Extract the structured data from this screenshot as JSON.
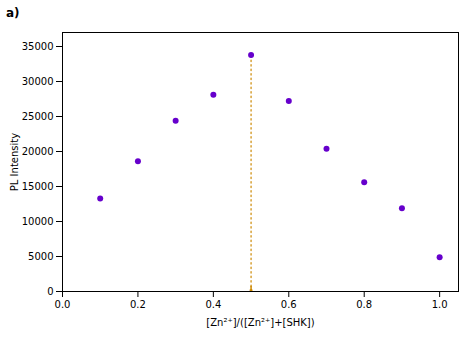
{
  "chart_data": {
    "type": "scatter",
    "x": [
      0.1,
      0.2,
      0.3,
      0.4,
      0.5,
      0.6,
      0.7,
      0.8,
      0.9,
      1.0
    ],
    "y": [
      13300,
      18600,
      24400,
      28100,
      33800,
      27200,
      20400,
      15600,
      11900,
      4900
    ],
    "color": "#6600CC",
    "marker": "circle",
    "xlabel": "[Zn²⁺]/([Zn²⁺]+[SHK])",
    "ylabel": "PL Intensity",
    "xlim": [
      0.0,
      1.05
    ],
    "ylim": [
      0,
      37000
    ],
    "xticks": [
      {
        "value": 0.0,
        "label": "0.0"
      },
      0.2,
      0.4,
      0.6,
      0.8,
      {
        "value": 1.0,
        "label": "1.0"
      }
    ],
    "yticks": [
      0,
      5000,
      10000,
      15000,
      20000,
      25000,
      30000,
      35000
    ],
    "grid": false,
    "vline": {
      "x": 0.5,
      "y": [
        700,
        33800
      ],
      "color": "#CC8800",
      "line_style": "dotted"
    },
    "arrow": {
      "x": 0.5,
      "from": 700,
      "to": 0,
      "color": "#CC8800"
    },
    "panel_label": "a)",
    "background_color": "#ffffff"
  }
}
